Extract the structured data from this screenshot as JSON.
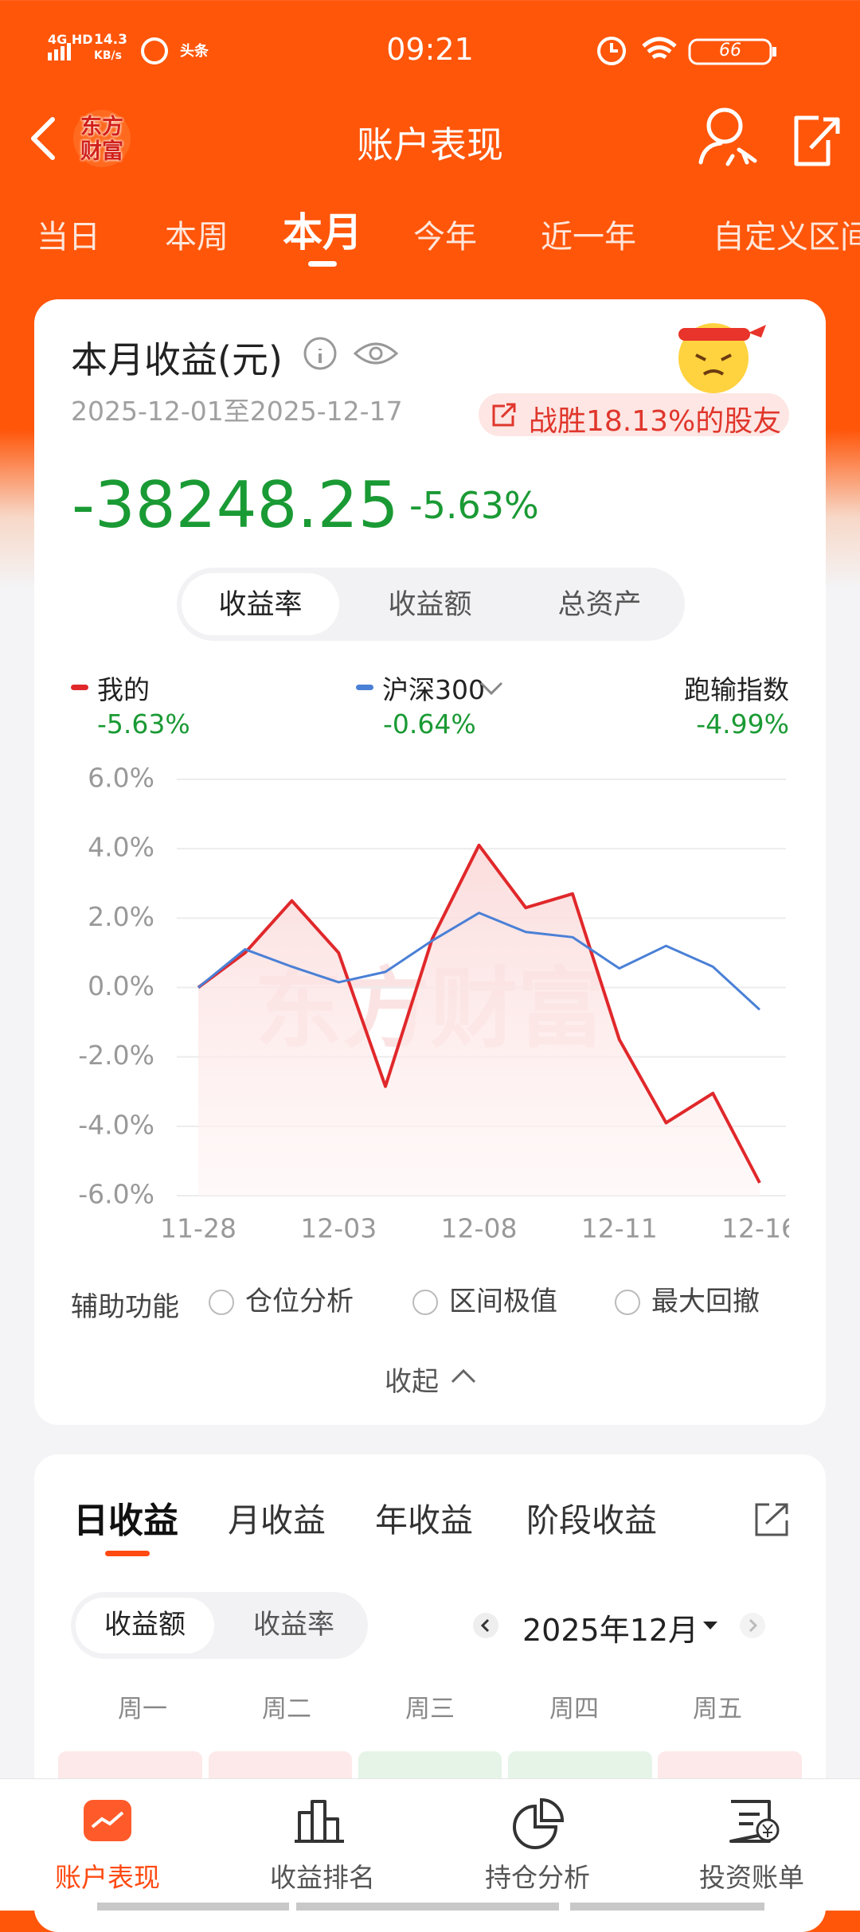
{
  "status_bar": {
    "network": "4G HD",
    "speed": "14.3",
    "speed_unit": "KB/s",
    "app": "头条",
    "time": "09:21",
    "battery": "66"
  },
  "header": {
    "logo": "东方财富",
    "title": "账户表现"
  },
  "period_tabs": {
    "items": [
      "当日",
      "本周",
      "本月",
      "今年",
      "近一年",
      "自定义区间"
    ],
    "selected": 2
  },
  "summary": {
    "title": "本月收益(元)",
    "date_range": "2025-12-01至2025-12-17",
    "badge": "战胜18.13%的股友",
    "amount": "-38248.25",
    "rate": "-5.63%"
  },
  "metric_tabs": {
    "items": [
      "收益率",
      "收益额",
      "总资产"
    ],
    "selected": 0
  },
  "chart_data": {
    "type": "line",
    "categories": [
      "11-28",
      null,
      null,
      "12-03",
      null,
      null,
      "12-08",
      null,
      null,
      "12-11",
      null,
      null,
      "12-16"
    ],
    "series": [
      {
        "name": "我的",
        "color": "#e0282b",
        "legend_value": "-5.63%",
        "values": [
          0,
          1.0,
          2.5,
          1.0,
          -2.85,
          1.4,
          4.1,
          2.3,
          2.7,
          -1.5,
          -3.9,
          -3.05,
          -5.63
        ]
      },
      {
        "name": "沪深300",
        "color": "#4a80d6",
        "legend_value": "-0.64%",
        "values": [
          0,
          1.1,
          0.6,
          0.15,
          0.45,
          1.35,
          2.15,
          1.6,
          1.45,
          0.55,
          1.2,
          0.6,
          -0.64
        ]
      }
    ],
    "extra_legend": {
      "name": "跑输指数",
      "value": "-4.99%"
    },
    "ylim": [
      -6,
      6
    ],
    "yticks": [
      {
        "value": 6,
        "label": "6.0%"
      },
      {
        "value": 4,
        "label": "4.0%"
      },
      {
        "value": 2,
        "label": "2.0%"
      },
      {
        "value": 0,
        "label": "0.0%"
      },
      {
        "value": -2,
        "label": "-2.0%"
      },
      {
        "value": -4,
        "label": "-4.0%"
      },
      {
        "value": -6,
        "label": "-6.0%"
      }
    ],
    "grid": true,
    "watermark": "东方财富"
  },
  "aux": {
    "label": "辅助功能",
    "options": [
      "仓位分析",
      "区间极值",
      "最大回撤"
    ],
    "collapse": "收起"
  },
  "earnings": {
    "tabs": [
      "日收益",
      "月收益",
      "年收益",
      "阶段收益"
    ],
    "selected": 0,
    "toggle": [
      "收益额",
      "收益率"
    ],
    "toggle_selected": 0,
    "month": "2025年12月",
    "weekdays": [
      "周一",
      "周二",
      "周三",
      "周四",
      "周五"
    ]
  },
  "bottom_nav": {
    "items": [
      "账户表现",
      "收益排名",
      "持仓分析",
      "投资账单"
    ],
    "selected": 0
  }
}
